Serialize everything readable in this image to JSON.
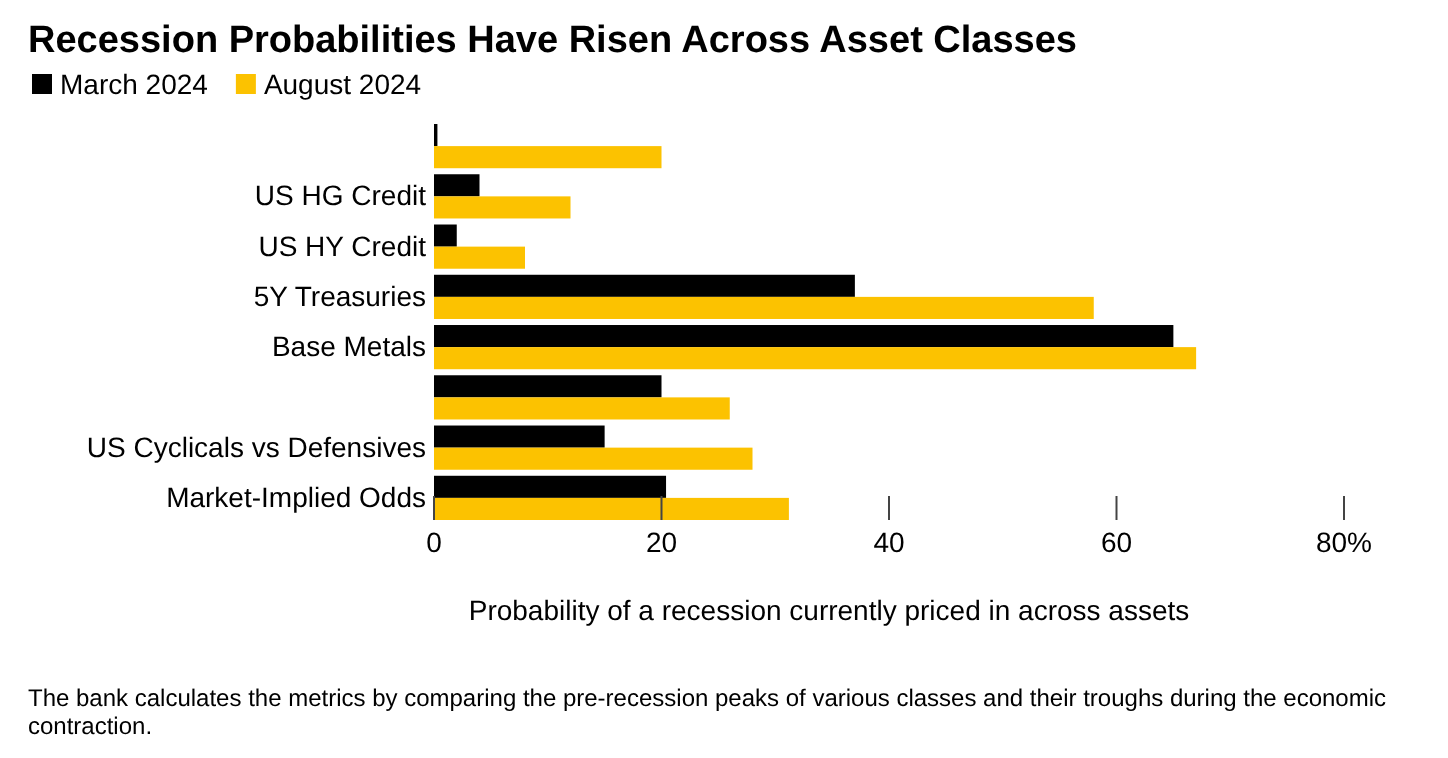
{
  "chart_data": {
    "type": "bar",
    "orientation": "horizontal",
    "title": "Recession Probabilities Have Risen Across Asset Classes",
    "categories": [
      null,
      "US HG Credit",
      "US HY Credit",
      "5Y Treasuries",
      "Base Metals",
      null,
      "US Cyclicals vs Defensives",
      "Market-Implied Odds"
    ],
    "series": [
      {
        "name": "March 2024",
        "color": "#000000",
        "values": [
          0.3,
          4,
          2,
          37,
          65,
          20,
          15,
          20.4
        ]
      },
      {
        "name": "August 2024",
        "color": "#fcc200",
        "values": [
          20,
          12,
          8,
          58,
          67,
          26,
          28,
          31.2
        ]
      }
    ],
    "xlim": [
      0,
      80
    ],
    "xticks": [
      0,
      20,
      40,
      60,
      {
        "value": 80,
        "label": "80%"
      }
    ],
    "xlabel": "Probability of a recession currently priced in across assets",
    "legend": "top left",
    "grid": false,
    "annotations": [
      "The bank calculates the metrics by comparing the pre-recession peaks of various classes and their troughs during the economic contraction."
    ]
  }
}
